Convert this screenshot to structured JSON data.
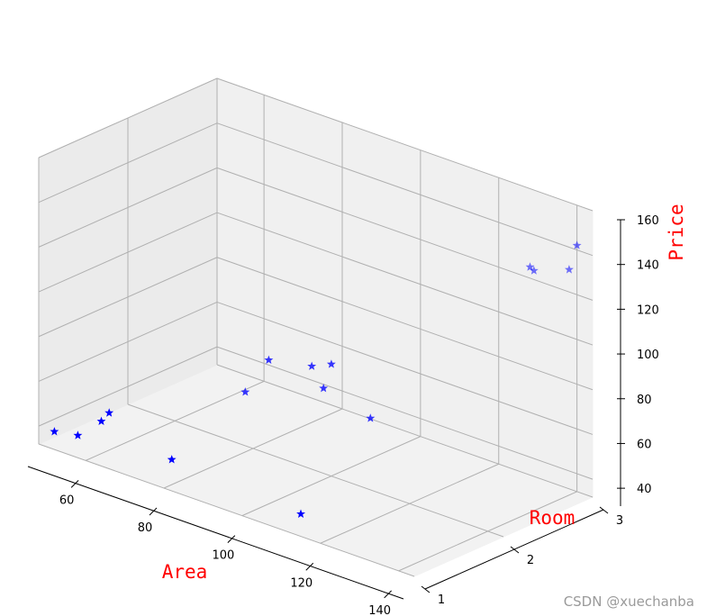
{
  "chart_data": {
    "type": "scatter",
    "projection": "3d",
    "axes": {
      "x": {
        "label": "Area",
        "ticks": [
          60,
          80,
          100,
          120,
          140
        ],
        "range": [
          48,
          144
        ]
      },
      "y": {
        "label": "Room",
        "ticks": [
          1,
          2,
          3
        ],
        "range": [
          1,
          3
        ]
      },
      "z": {
        "label": "Price",
        "ticks": [
          40,
          60,
          80,
          100,
          120,
          140,
          160
        ],
        "range": [
          32,
          160
        ]
      }
    },
    "label_color": "#ff0000",
    "marker": "star",
    "marker_color": "#0000ff",
    "grid": true,
    "points": [
      {
        "area": 52,
        "room": 1,
        "price": 40
      },
      {
        "area": 58,
        "room": 1,
        "price": 42
      },
      {
        "area": 64,
        "room": 1,
        "price": 52
      },
      {
        "area": 66,
        "room": 1,
        "price": 57
      },
      {
        "area": 82,
        "room": 1,
        "price": 46
      },
      {
        "area": 78,
        "room": 2,
        "price": 56
      },
      {
        "area": 84,
        "room": 2,
        "price": 74
      },
      {
        "area": 95,
        "room": 2,
        "price": 78
      },
      {
        "area": 98,
        "room": 2,
        "price": 70
      },
      {
        "area": 100,
        "room": 2,
        "price": 82
      },
      {
        "area": 110,
        "room": 2,
        "price": 64
      },
      {
        "area": 115,
        "room": 1,
        "price": 42
      },
      {
        "area": 128,
        "room": 3,
        "price": 125
      },
      {
        "area": 129,
        "room": 3,
        "price": 124
      },
      {
        "area": 138,
        "room": 3,
        "price": 130
      },
      {
        "area": 140,
        "room": 3,
        "price": 142
      }
    ]
  },
  "watermark": "CSDN @xuechanba"
}
